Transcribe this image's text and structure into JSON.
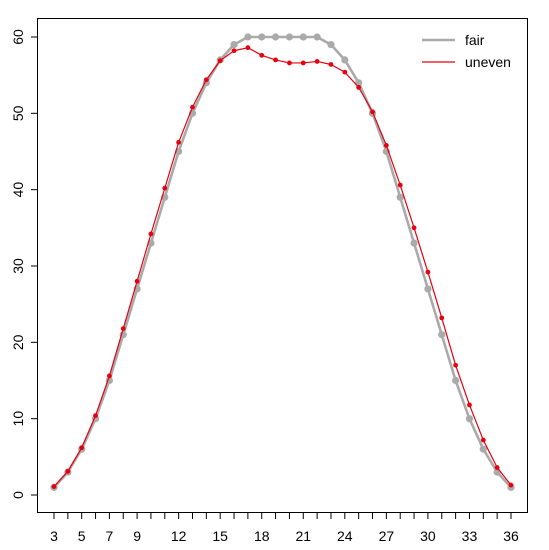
{
  "chart_data": {
    "type": "line",
    "title": "",
    "xlabel": "",
    "ylabel": "",
    "x": [
      3,
      4,
      5,
      6,
      7,
      8,
      9,
      10,
      11,
      12,
      13,
      14,
      15,
      16,
      17,
      18,
      19,
      20,
      21,
      22,
      23,
      24,
      25,
      26,
      27,
      28,
      29,
      30,
      31,
      32,
      33,
      34,
      35,
      36
    ],
    "xlim": [
      3,
      36
    ],
    "ylim": [
      0,
      60
    ],
    "x_ticks": [
      "3",
      "5",
      "7",
      "9",
      "12",
      "15",
      "18",
      "21",
      "24",
      "27",
      "30",
      "33",
      "36"
    ],
    "x_tick_positions": [
      3,
      4,
      5,
      6,
      7,
      8,
      9,
      10,
      11,
      12,
      13,
      14,
      15,
      16,
      17,
      18,
      19,
      20,
      21,
      22,
      23,
      24,
      25,
      26,
      27,
      28,
      29,
      30,
      31,
      32,
      33,
      34,
      35,
      36
    ],
    "x_tick_labels_shown": {
      "3": "3",
      "5": "5",
      "7": "7",
      "9": "9",
      "12": "12",
      "15": "15",
      "18": "18",
      "21": "21",
      "24": "24",
      "27": "27",
      "30": "30",
      "33": "33",
      "36": "36"
    },
    "y_ticks": [
      "0",
      "10",
      "20",
      "30",
      "40",
      "50",
      "60"
    ],
    "legend_position": "top-right",
    "grid": false,
    "series": [
      {
        "name": "fair",
        "color": "#aaaaaa",
        "values": [
          1,
          3,
          6,
          10,
          15,
          21,
          27,
          33,
          39,
          45,
          50,
          54,
          57,
          59,
          60,
          60,
          60,
          60,
          60,
          60,
          59,
          57,
          54,
          50,
          45,
          39,
          33,
          27,
          21,
          15,
          10,
          6,
          3,
          1
        ]
      },
      {
        "name": "uneven",
        "color": "#e8000e",
        "values": [
          1.1,
          3.1,
          6.2,
          10.4,
          15.6,
          21.8,
          28.0,
          34.2,
          40.2,
          46.2,
          50.8,
          54.4,
          56.9,
          58.2,
          58.6,
          57.6,
          57.0,
          56.6,
          56.6,
          56.8,
          56.4,
          55.4,
          53.4,
          50.2,
          45.8,
          40.6,
          35.0,
          29.2,
          23.2,
          17.0,
          11.8,
          7.2,
          3.6,
          1.3
        ]
      }
    ]
  }
}
